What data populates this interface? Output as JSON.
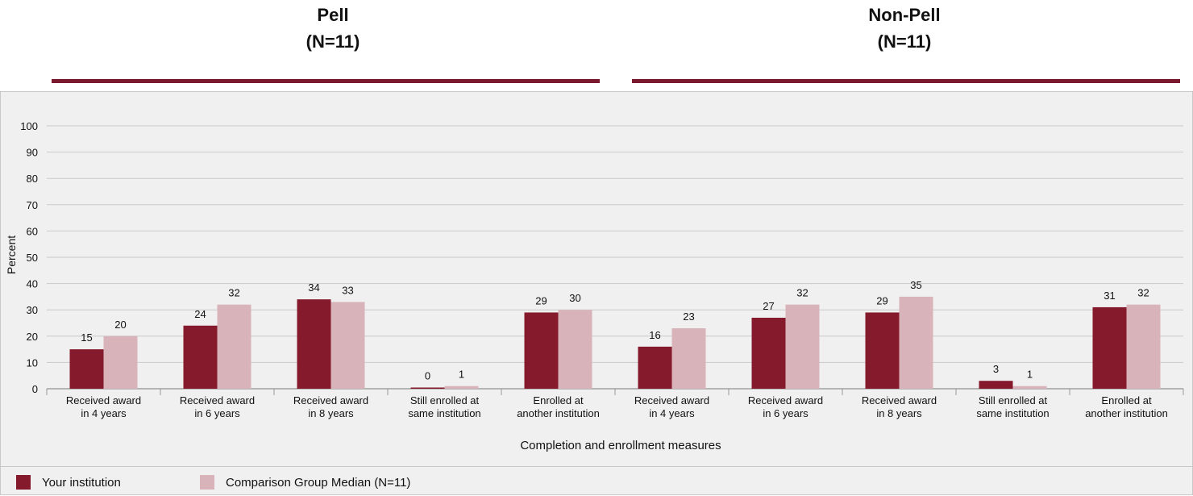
{
  "groups": [
    {
      "title": "Pell",
      "subtitle": "(N=11)"
    },
    {
      "title": "Non-Pell",
      "subtitle": "(N=11)"
    }
  ],
  "colors": {
    "your_institution": "#861a2d",
    "comparison": "#d8b4ba",
    "rule": "#7b1a2e"
  },
  "legend": [
    {
      "label": "Your institution",
      "color": "#861a2d"
    },
    {
      "label": "Comparison Group Median (N=11)",
      "color": "#d8b4ba"
    }
  ],
  "chart_data": {
    "type": "bar",
    "xlabel": "Completion and enrollment measures",
    "ylabel": "Percent",
    "ylim": [
      0,
      100
    ],
    "yticks": [
      0,
      10,
      20,
      30,
      40,
      50,
      60,
      70,
      80,
      90,
      100
    ],
    "grid": true,
    "categories": [
      [
        "Received award",
        "in 4 years"
      ],
      [
        "Received award",
        "in 6 years"
      ],
      [
        "Received award",
        "in 8 years"
      ],
      [
        "Still enrolled at",
        "same institution"
      ],
      [
        "Enrolled at",
        "another institution"
      ],
      [
        "Received award",
        "in 4 years"
      ],
      [
        "Received award",
        "in 6 years"
      ],
      [
        "Received award",
        "in 8 years"
      ],
      [
        "Still enrolled at",
        "same institution"
      ],
      [
        "Enrolled at",
        "another institution"
      ]
    ],
    "series": [
      {
        "name": "Your institution",
        "color": "#861a2d",
        "values": [
          15,
          24,
          34,
          0,
          29,
          16,
          27,
          29,
          3,
          31
        ]
      },
      {
        "name": "Comparison Group Median (N=11)",
        "color": "#d8b4ba",
        "values": [
          20,
          32,
          33,
          1,
          30,
          23,
          32,
          35,
          1,
          32
        ]
      }
    ]
  }
}
